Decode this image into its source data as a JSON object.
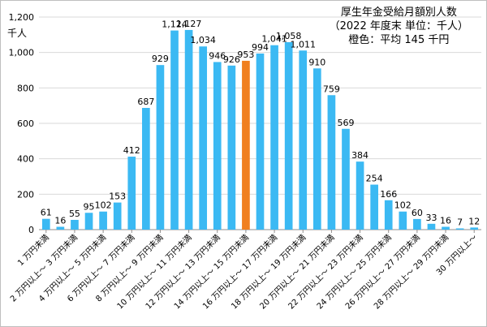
{
  "chart_data": {
    "type": "bar",
    "title_lines": [
      "厚生年金受給月額別人数",
      "（2022 年度末 単位：千人）",
      "橙色：平均 145 千円"
    ],
    "ylabel": "千人",
    "ylim": [
      0,
      1200
    ],
    "yticks": [
      0,
      200,
      400,
      600,
      800,
      1000,
      1200
    ],
    "ytick_labels": [
      "0",
      "200",
      "400",
      "600",
      "800",
      "1,000",
      "1,200"
    ],
    "grid": true,
    "legend": "none",
    "bar_color": "#3bb9f3",
    "highlight_color": "#f07f1f",
    "highlight_index": 14,
    "values": [
      61,
      16,
      55,
      95,
      102,
      153,
      412,
      687,
      929,
      1124,
      1127,
      1034,
      946,
      926,
      953,
      994,
      1041,
      1058,
      1011,
      910,
      759,
      569,
      384,
      254,
      166,
      102,
      60,
      33,
      16,
      7,
      12
    ],
    "value_labels": [
      "61",
      "16",
      "55",
      "95",
      "102",
      "153",
      "412",
      "687",
      "929",
      "1,124",
      "1,127",
      "1,034",
      "946",
      "926",
      "953",
      "994",
      "1,041",
      "1,058",
      "1,011",
      "910",
      "759",
      "569",
      "384",
      "254",
      "166",
      "102",
      "60",
      "33",
      "16",
      "7",
      "12"
    ],
    "category_labels": [
      "1 万円未満",
      "2 万円以上～ 3 万円未満",
      "4 万円以上～ 5 万円未満",
      "6 万円以上～ 7 万円未満",
      "8 万円以上～ 9 万円未満",
      "10 万円以上～ 11 万円未満",
      "12 万円以上～ 13 万円未満",
      "14 万円以上～ 15 万円未満",
      "16 万円以上～ 17 万円未満",
      "18 万円以上～ 19 万円未満",
      "20 万円以上～ 21 万円未満",
      "22 万円以上～ 23 万円未満",
      "24 万円以上～ 25 万円未満",
      "26 万円以上～ 27 万円未満",
      "28 万円以上～ 29 万円未満",
      "30 万円以上～"
    ]
  }
}
